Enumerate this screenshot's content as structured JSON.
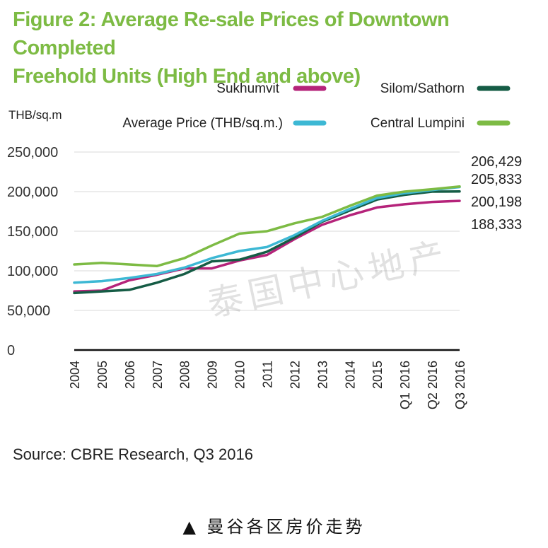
{
  "title_line1": "Figure 2: Average Re-sale Prices of Downtown Completed",
  "title_line2": "Freehold Units (High End and above)",
  "source": "Source: CBRE Research, Q3 2016",
  "caption": "▲ 曼谷各区房价走势",
  "watermark": "泰国中心地产",
  "chart_data": {
    "type": "line",
    "ylabel": "THB/sq.m",
    "ylim": [
      0,
      250000
    ],
    "yticks": [
      0,
      50000,
      100000,
      150000,
      200000,
      250000
    ],
    "ytick_labels": [
      "0",
      "50,000",
      "100,000",
      "150,000",
      "200,000",
      "250,000"
    ],
    "categories": [
      "2004",
      "2005",
      "2006",
      "2007",
      "2008",
      "2009",
      "2010",
      "2011",
      "2012",
      "2013",
      "2014",
      "2015",
      "Q1 2016",
      "Q2 2016",
      "Q3 2016"
    ],
    "series": [
      {
        "name": "Sukhumvit",
        "color": "#b5237a",
        "values": [
          74000,
          75000,
          88000,
          95000,
          103000,
          103000,
          113000,
          120000,
          140000,
          158000,
          170000,
          180000,
          184000,
          187000,
          188333
        ]
      },
      {
        "name": "Silom/Sathorn",
        "color": "#155c45",
        "values": [
          72000,
          74000,
          76000,
          85000,
          96000,
          112000,
          114000,
          124000,
          142000,
          162000,
          176000,
          190000,
          196000,
          200000,
          200198
        ]
      },
      {
        "name": "Average Price (THB/sq.m.)",
        "color": "#3db8d4",
        "values": [
          85000,
          87000,
          91000,
          96000,
          104000,
          116000,
          125000,
          130000,
          145000,
          163000,
          178000,
          192000,
          198000,
          202000,
          205833
        ]
      },
      {
        "name": "Central Lumpini",
        "color": "#7dbb44",
        "values": [
          108000,
          110000,
          108000,
          106000,
          116000,
          132000,
          147000,
          150000,
          160000,
          168000,
          182000,
          195000,
          200000,
          203000,
          206429
        ]
      }
    ],
    "end_labels": [
      "206,429",
      "205,833",
      "200,198",
      "188,333"
    ],
    "legend_placement": "top",
    "grid": "horizontal"
  }
}
